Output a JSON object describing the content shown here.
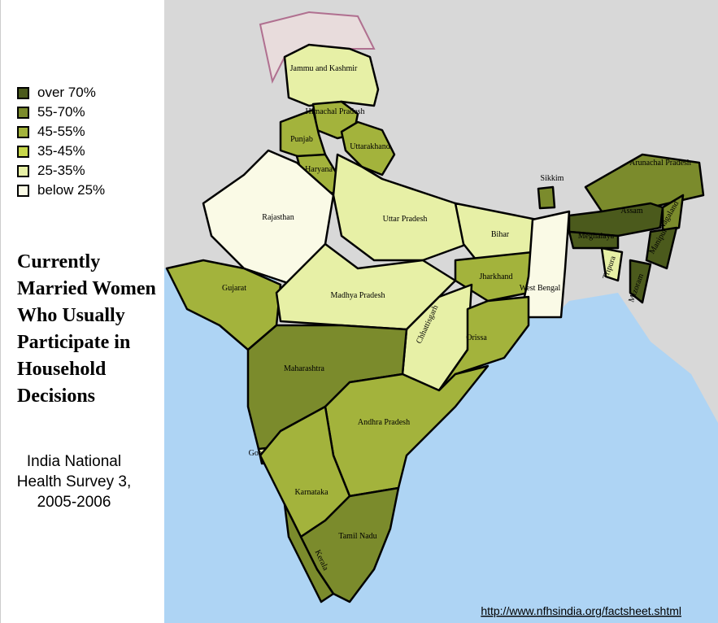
{
  "title": "Currently Married Women Who Usually Participate in Household Decisions",
  "subtitle": "India National Health Survey 3, 2005-2006",
  "source": "http://www.nfhsindia.org/factsheet.shtml",
  "legend": [
    {
      "label": "over 70%",
      "color": "#4b5a1c"
    },
    {
      "label": "55-70%",
      "color": "#7b8b2c"
    },
    {
      "label": "45-55%",
      "color": "#a3b33c"
    },
    {
      "label": "35-45%",
      "color": "#c6d64a"
    },
    {
      "label": "25-35%",
      "color": "#e7f0a6"
    },
    {
      "label": "below 25%",
      "color": "#fafae6"
    }
  ],
  "states": [
    {
      "name": "Jammu and Kashmir",
      "color": "#e7f0a6"
    },
    {
      "name": "Himachal Pradesh",
      "color": "#a3b33c"
    },
    {
      "name": "Punjab",
      "color": "#a3b33c"
    },
    {
      "name": "Uttarakhand",
      "color": "#a3b33c"
    },
    {
      "name": "Haryana",
      "color": "#a3b33c"
    },
    {
      "name": "Rajasthan",
      "color": "#fafae6"
    },
    {
      "name": "Uttar Pradesh",
      "color": "#e7f0a6"
    },
    {
      "name": "Bihar",
      "color": "#e7f0a6"
    },
    {
      "name": "Sikkim",
      "color": "#7b8b2c"
    },
    {
      "name": "Arunachal Pradesh",
      "color": "#7b8b2c"
    },
    {
      "name": "Assam",
      "color": "#4b5a1c"
    },
    {
      "name": "Meghalaya",
      "color": "#4b5a1c"
    },
    {
      "name": "Nagaland",
      "color": "#7b8b2c"
    },
    {
      "name": "Manipur",
      "color": "#4b5a1c"
    },
    {
      "name": "Mizoram",
      "color": "#4b5a1c"
    },
    {
      "name": "Tripura",
      "color": "#e7f0a6"
    },
    {
      "name": "Gujarat",
      "color": "#a3b33c"
    },
    {
      "name": "Madhya Pradesh",
      "color": "#e7f0a6"
    },
    {
      "name": "Jharkhand",
      "color": "#a3b33c"
    },
    {
      "name": "West Bengal",
      "color": "#fafae6"
    },
    {
      "name": "Chhattisgarh",
      "color": "#e7f0a6"
    },
    {
      "name": "Orissa",
      "color": "#a3b33c"
    },
    {
      "name": "Maharashtra",
      "color": "#7b8b2c"
    },
    {
      "name": "Andhra Pradesh",
      "color": "#a3b33c"
    },
    {
      "name": "Goa",
      "color": "#e7f0a6"
    },
    {
      "name": "Karnataka",
      "color": "#a3b33c"
    },
    {
      "name": "Kerala",
      "color": "#7b8b2c"
    },
    {
      "name": "Tamil Nadu",
      "color": "#7b8b2c"
    }
  ]
}
